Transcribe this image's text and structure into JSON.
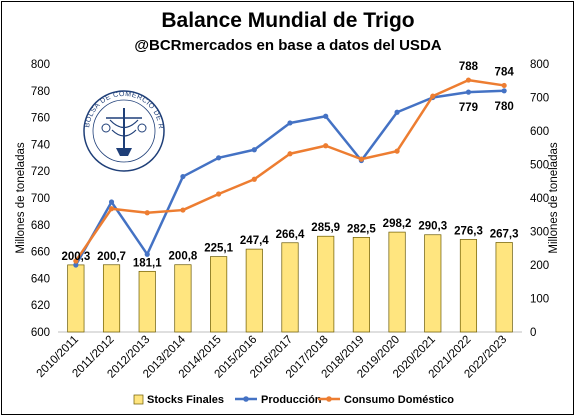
{
  "chart_data": {
    "type": "bar+line",
    "title": "Balance Mundial de Trigo",
    "subtitle": "@BCRmercados en base a datos del USDA",
    "ylabel": "Millones de toneladas",
    "categories": [
      "2010/2011",
      "2011/2012",
      "2012/2013",
      "2013/2014",
      "2014/2015",
      "2015/2016",
      "2016/2017",
      "2017/2018",
      "2018/2019",
      "2019/2020",
      "2020/2021",
      "2021/2022",
      "2022/2023"
    ],
    "left_axis": {
      "min": 600,
      "max": 800,
      "step": 20,
      "ticks": [
        "600",
        "620",
        "640",
        "660",
        "680",
        "700",
        "720",
        "740",
        "760",
        "780",
        "800"
      ]
    },
    "right_axis": {
      "min": 0,
      "max": 800,
      "step": 100,
      "ticks": [
        "0",
        "100",
        "200",
        "300",
        "400",
        "500",
        "600",
        "700",
        "800"
      ]
    },
    "grid": false,
    "legend_position": "bottom",
    "series": [
      {
        "name": "Stocks Finales",
        "type": "bar",
        "axis": "right",
        "color": "#ffe57f",
        "values": [
          200.3,
          200.7,
          181.1,
          200.8,
          225.1,
          247.4,
          266.4,
          285.9,
          282.5,
          298.2,
          290.3,
          276.3,
          267.3
        ],
        "labels": [
          "200,3",
          "200,7",
          "181,1",
          "200,8",
          "225,1",
          "247,4",
          "266,4",
          "285,9",
          "282,5",
          "298,2",
          "290,3",
          "276,3",
          "267,3"
        ]
      },
      {
        "name": "Producción",
        "type": "line",
        "axis": "left",
        "color": "#4472c4",
        "values": [
          650,
          697,
          658,
          716,
          730,
          736,
          756,
          761,
          728,
          764,
          775,
          779,
          780
        ],
        "last_labels": {
          "11": "779",
          "12": "780"
        }
      },
      {
        "name": "Consumo Doméstico",
        "type": "line",
        "axis": "left",
        "color": "#ed7d31",
        "values": [
          653,
          692,
          689,
          691,
          703,
          714,
          733,
          739,
          729,
          735,
          776,
          788,
          784
        ],
        "last_labels": {
          "11": "788",
          "12": "784"
        }
      }
    ]
  },
  "logo": {
    "text": "BOLSA DE COMERCIO DE ROSARIO"
  }
}
